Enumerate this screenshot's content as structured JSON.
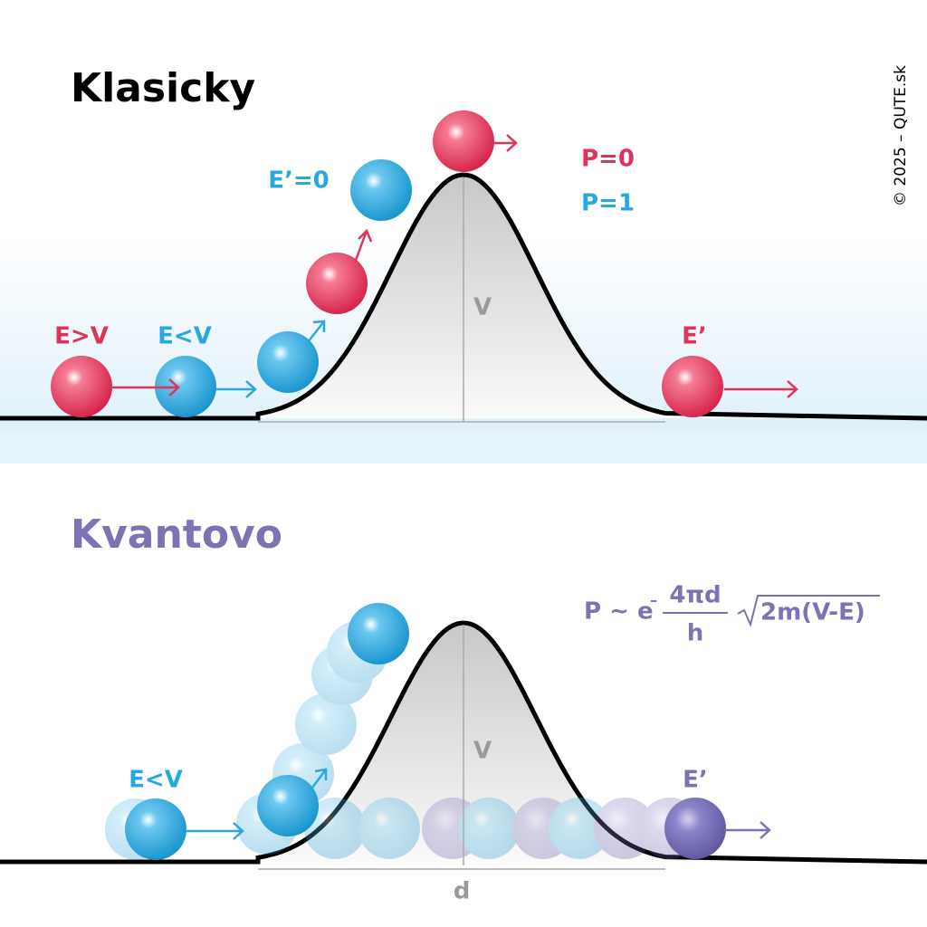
{
  "classical": {
    "title": "Klasicky",
    "label_e_gt_v": "E>V",
    "label_e_lt_v": "E<V",
    "label_e_prime_zero": "E’=0",
    "label_p0": "P=0",
    "label_p1": "P=1",
    "label_v": "V",
    "label_e_prime": "E’"
  },
  "copyright": "© 2025 – QUTE.sk",
  "quantum": {
    "title": "Kvantovo",
    "label_e_lt_v": "E<V",
    "label_v": "V",
    "label_e_prime": "E’",
    "label_d": "d",
    "formula": {
      "prefix": "P ~ e",
      "exponent_sign": "–",
      "numerator": "4πd",
      "denominator": "h",
      "radicand": "2m(V-E)"
    }
  }
}
